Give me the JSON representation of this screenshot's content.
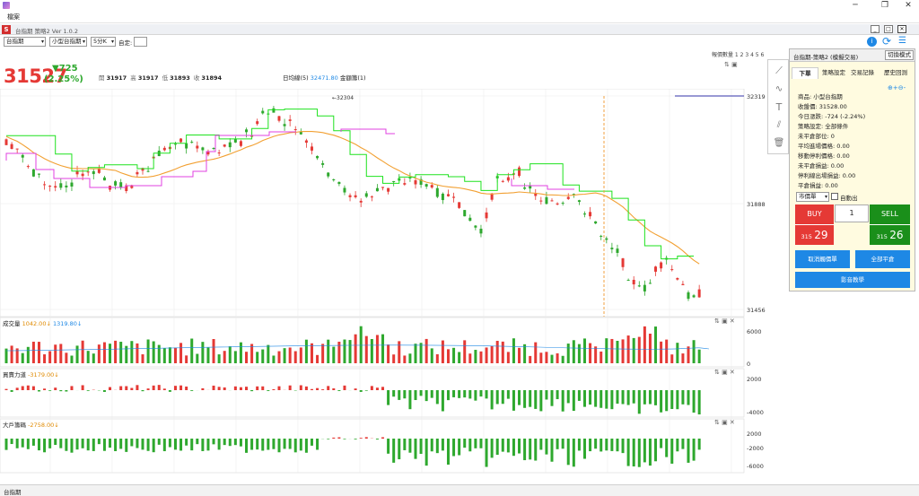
{
  "window": {
    "app_title": "台指期 策略2 Ver 1.0.2",
    "menu_file": "檔案",
    "minimize": "─",
    "maximize": "❐",
    "close": "✕",
    "badge": "S"
  },
  "toolbar": {
    "product": "台指期",
    "contract": "小型台指期",
    "period": "5分K",
    "custom_label": "自定:",
    "custom_value": "",
    "record_label": "報價數量 1 2 3 4 5 6"
  },
  "quote": {
    "price": "31527",
    "change": "▼725",
    "change_pct": "(2.25%)",
    "open_label": "開",
    "open": "31917",
    "high_label": "高",
    "high": "31917",
    "low_label": "低",
    "low": "31893",
    "close_label": "收",
    "close": "31894",
    "ma_label": "日均線(5)",
    "ma_value": "32471.80",
    "vol_label": "金額籌(1)"
  },
  "main_chart": {
    "high_marker": "←32304",
    "price_labels": [
      "32319",
      "31888",
      "31456"
    ]
  },
  "volume_panel": {
    "title": "成交量",
    "v1": "1042.00↓",
    "v2": "1319.80↓",
    "labels": [
      "6000",
      "0"
    ]
  },
  "force_panel": {
    "title": "買賣力道",
    "v1": "-3179.00↓",
    "labels": [
      "2000",
      "-4000"
    ]
  },
  "big_panel": {
    "title": "大戶籌碼",
    "v1": "-2758.00↓",
    "labels": [
      "2000",
      "-2000",
      "-6000"
    ]
  },
  "side": {
    "title": "台指期-策略2 (模擬交易)",
    "switch_button": "切換模式",
    "tabs": [
      "下單",
      "策略設定",
      "交易記錄",
      "歷史回測"
    ],
    "info": [
      "商品: 小型台指期",
      "收盤價: 31528.00",
      "今日漲跌: -724 (-2.24%)",
      "策略設定: 全部條件",
      "未平倉部位: 0",
      "平均進場價格: 0.00",
      "移動停利價格: 0.00",
      "未平倉損益: 0.00",
      "停利線出場損益: 0.00",
      "平倉損益: 0.00"
    ],
    "order_type": "市價單",
    "auto_label": "自動出",
    "buy_label": "BUY",
    "sell_label": "SELL",
    "qty": "1",
    "buy_price_a": "315",
    "buy_price_b": "29",
    "sell_price_a": "315",
    "sell_price_b": "26",
    "cancel_btn": "取消觸價單",
    "close_all_btn": "全部平倉",
    "video_btn": "影音教學"
  },
  "status": {
    "tab": "台指期"
  },
  "colors": {
    "up": "#e53935",
    "down": "#2ea82e",
    "ma": "#f2a032",
    "stop": "#1ee21e",
    "magenta": "#e040e0",
    "accent": "#1e88e5"
  }
}
